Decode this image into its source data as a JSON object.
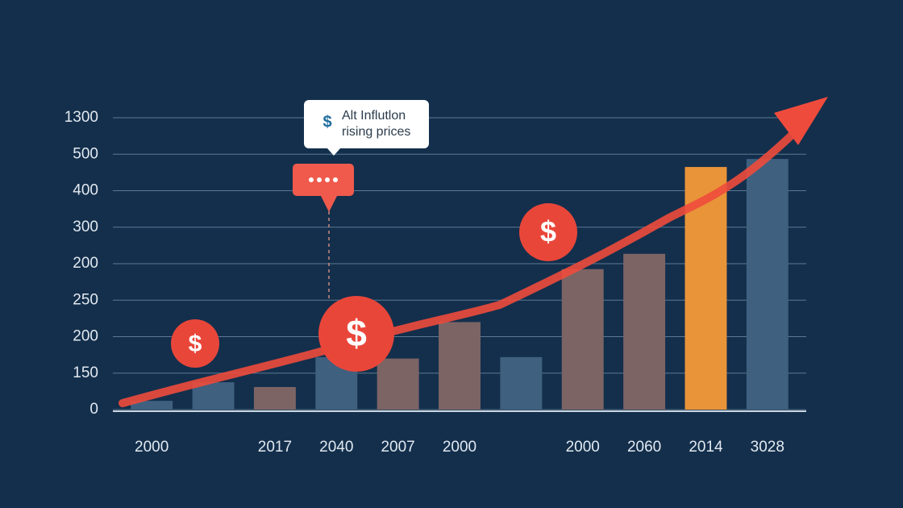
{
  "chart_data": {
    "type": "bar",
    "categories": [
      "2000",
      null,
      "2017",
      "2040",
      "2007",
      "2000",
      null,
      "2000",
      "2060",
      "2014",
      "3028"
    ],
    "values": [
      0.24,
      0.75,
      0.62,
      1.44,
      1.4,
      2.4,
      1.44,
      3.85,
      4.27,
      6.65,
      6.87
    ],
    "colors": [
      "#3f607f",
      "#3f607f",
      "#7c6464",
      "#3f607f",
      "#7c6464",
      "#7c6464",
      "#3f607f",
      "#7c6464",
      "#7c6464",
      "#e99439",
      "#3f607f"
    ],
    "ylim": [
      0,
      8
    ],
    "yticks": [
      {
        "value": 0,
        "label": "0"
      },
      {
        "value": 1,
        "label": "150"
      },
      {
        "value": 2,
        "label": "200"
      },
      {
        "value": 3,
        "label": "250"
      },
      {
        "value": 4,
        "label": "200"
      },
      {
        "value": 5,
        "label": "300"
      },
      {
        "value": 6,
        "label": "400"
      },
      {
        "value": 7,
        "label": "500"
      },
      {
        "value": 8,
        "label": "1300"
      }
    ],
    "grid": true,
    "annotation": [
      "Alt Influtlon",
      "rising prices"
    ],
    "dollar_symbol": "$"
  }
}
